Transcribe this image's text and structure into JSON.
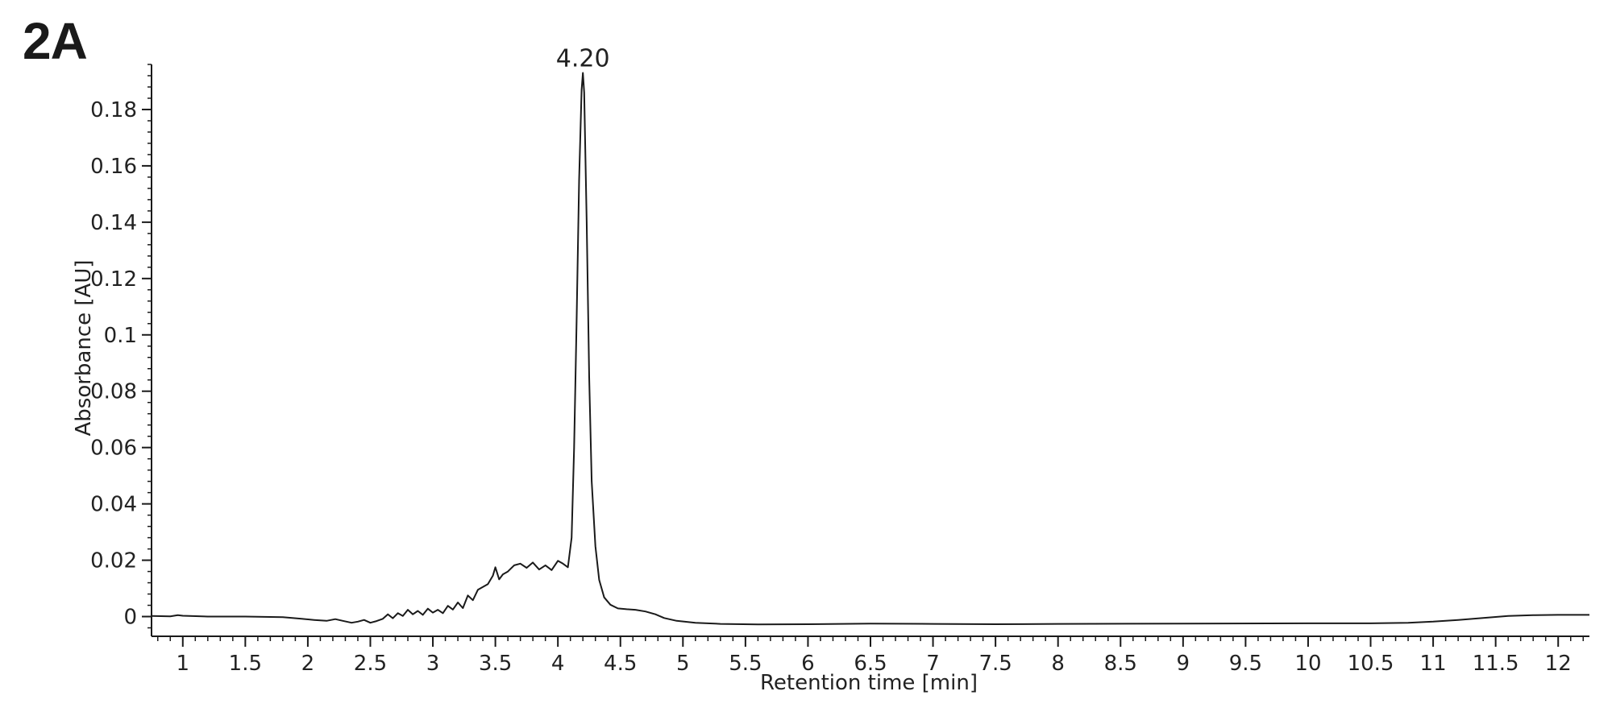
{
  "panel_label": "2A",
  "chart_data": {
    "type": "line",
    "title": "",
    "xlabel": "Retention time [min]",
    "ylabel": "Absorbance [AU]",
    "xlim": [
      0.75,
      12.25
    ],
    "ylim": [
      -0.007,
      0.196
    ],
    "x_ticks": [
      1,
      1.5,
      2,
      2.5,
      3,
      3.5,
      4,
      4.5,
      5,
      5.5,
      6,
      6.5,
      7,
      7.5,
      8,
      8.5,
      9,
      9.5,
      10,
      10.5,
      11,
      11.5,
      12
    ],
    "x_tick_labels": [
      "1",
      "1.5",
      "2",
      "2.5",
      "3",
      "3.5",
      "4",
      "4.5",
      "5",
      "5.5",
      "6",
      "6.5",
      "7",
      "7.5",
      "8",
      "8.5",
      "9",
      "9.5",
      "10",
      "10.5",
      "11",
      "11.5",
      "12"
    ],
    "y_ticks": [
      0,
      0.02,
      0.04,
      0.06,
      0.08,
      0.1,
      0.12,
      0.14,
      0.16,
      0.18
    ],
    "y_tick_labels": [
      "0",
      "0.02",
      "0.04",
      "0.06",
      "0.08",
      "0.1",
      "0.12",
      "0.14",
      "0.16",
      "0.18"
    ],
    "annotations": [
      {
        "text": "4.20",
        "x": 4.2,
        "y": 0.193
      }
    ],
    "grid": false,
    "line_color": "#1a1a1a",
    "series": [
      {
        "name": "",
        "x": [
          0.75,
          0.9,
          0.96,
          1.0,
          1.2,
          1.5,
          1.8,
          1.95,
          2.05,
          2.15,
          2.22,
          2.28,
          2.35,
          2.4,
          2.45,
          2.5,
          2.55,
          2.6,
          2.64,
          2.68,
          2.72,
          2.76,
          2.8,
          2.84,
          2.88,
          2.92,
          2.96,
          3.0,
          3.04,
          3.08,
          3.12,
          3.16,
          3.2,
          3.24,
          3.28,
          3.32,
          3.36,
          3.4,
          3.44,
          3.48,
          3.5,
          3.53,
          3.56,
          3.6,
          3.65,
          3.7,
          3.75,
          3.8,
          3.85,
          3.9,
          3.95,
          4.0,
          4.04,
          4.08,
          4.11,
          4.13,
          4.15,
          4.17,
          4.19,
          4.2,
          4.21,
          4.23,
          4.25,
          4.27,
          4.3,
          4.33,
          4.37,
          4.42,
          4.48,
          4.55,
          4.62,
          4.7,
          4.78,
          4.85,
          4.95,
          5.1,
          5.3,
          5.6,
          6.0,
          6.5,
          7.0,
          7.5,
          8.0,
          9.0,
          10.0,
          10.5,
          10.8,
          11.0,
          11.2,
          11.4,
          11.6,
          11.8,
          12.0,
          12.25
        ],
        "y": [
          0.0002,
          0.0001,
          0.0005,
          0.0003,
          0.0,
          0.0,
          -0.0002,
          -0.0008,
          -0.0012,
          -0.0015,
          -0.0009,
          -0.0015,
          -0.0022,
          -0.0018,
          -0.0012,
          -0.0022,
          -0.0016,
          -0.0008,
          0.0008,
          -0.0006,
          0.0012,
          0.0002,
          0.0024,
          0.0008,
          0.002,
          0.0006,
          0.0028,
          0.0014,
          0.0024,
          0.0012,
          0.0038,
          0.0025,
          0.005,
          0.003,
          0.0075,
          0.0058,
          0.0095,
          0.0105,
          0.0115,
          0.0145,
          0.0175,
          0.0132,
          0.015,
          0.016,
          0.0182,
          0.0188,
          0.0173,
          0.0192,
          0.0167,
          0.0182,
          0.0165,
          0.0198,
          0.0188,
          0.0175,
          0.028,
          0.06,
          0.105,
          0.155,
          0.187,
          0.193,
          0.186,
          0.14,
          0.085,
          0.048,
          0.025,
          0.013,
          0.0068,
          0.0042,
          0.0029,
          0.0026,
          0.0024,
          0.0018,
          0.0008,
          -0.0005,
          -0.0015,
          -0.0022,
          -0.0026,
          -0.0028,
          -0.0027,
          -0.0025,
          -0.0026,
          -0.0027,
          -0.0026,
          -0.0025,
          -0.0024,
          -0.0024,
          -0.0022,
          -0.0018,
          -0.0012,
          -0.0005,
          0.0002,
          0.0005,
          0.0006,
          0.0006
        ]
      }
    ]
  }
}
